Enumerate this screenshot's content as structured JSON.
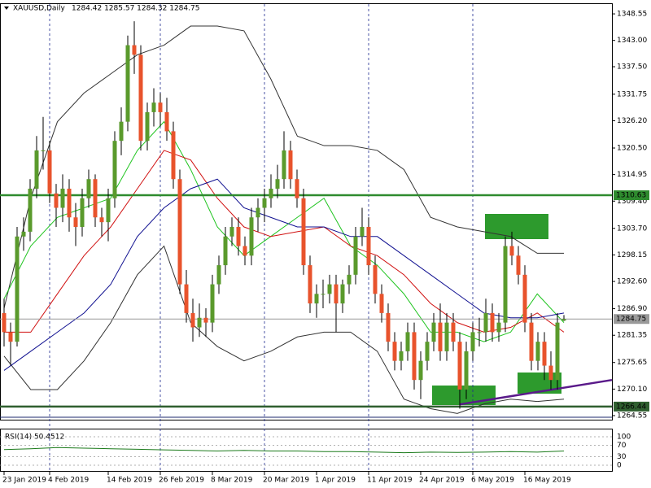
{
  "chart_data": {
    "type": "candlestick",
    "title": "XAUUSD,Daily",
    "ohlc_text": "1284.42 1285.57 1284.32 1284.75",
    "ylim": [
      1263.7,
      1350.6
    ],
    "yticks": [
      1348.55,
      {
        "value": 1343.0,
        "label": "1343.00"
      },
      {
        "value": 1337.5,
        "label": "1337.50"
      },
      1331.75,
      {
        "value": 1326.2,
        "label": "1326.20"
      },
      {
        "value": 1320.5,
        "label": "1320.50"
      },
      1314.95,
      {
        "value": 1309.4,
        "label": "1309.40"
      },
      {
        "value": 1303.7,
        "label": "1303.70"
      },
      1298.15,
      {
        "value": 1292.6,
        "label": "1292.60"
      },
      {
        "value": 1286.9,
        "label": "1286.90"
      },
      1281.35,
      1275.65,
      {
        "value": 1270.1,
        "label": "1270.10"
      },
      1264.55
    ],
    "xticks": [
      {
        "value": 0,
        "label": "23 Jan 2019"
      },
      {
        "value": 7,
        "label": "4 Feb 2019"
      },
      {
        "value": 16,
        "label": "14 Feb 2019"
      },
      {
        "value": 24,
        "label": "26 Feb 2019"
      },
      {
        "value": 32,
        "label": "8 Mar 2019"
      },
      {
        "value": 40,
        "label": "20 Mar 2019"
      },
      {
        "value": 48,
        "label": "1 Apr 2019"
      },
      {
        "value": 56,
        "label": "11 Apr 2019"
      },
      {
        "value": 64,
        "label": "24 Apr 2019"
      },
      {
        "value": 72,
        "label": "6 May 2019"
      },
      {
        "value": 80,
        "label": "16 May 2019"
      }
    ],
    "up_color": "#5a9a2c",
    "down_color": "#e8532c",
    "candles": [
      [
        1286,
        1289,
        1279,
        1282
      ],
      [
        1282,
        1284,
        1275,
        1280
      ],
      [
        1280,
        1304,
        1279,
        1302
      ],
      [
        1302,
        1306,
        1299,
        1303
      ],
      [
        1303,
        1314,
        1301,
        1312
      ],
      [
        1312,
        1323,
        1310,
        1320
      ],
      [
        1320,
        1327,
        1316,
        1320
      ],
      [
        1320,
        1322,
        1309,
        1311
      ],
      [
        1311,
        1313,
        1304,
        1308
      ],
      [
        1308,
        1315,
        1305,
        1312
      ],
      [
        1312,
        1314,
        1303,
        1306
      ],
      [
        1306,
        1309,
        1300,
        1304
      ],
      [
        1304,
        1312,
        1302,
        1310
      ],
      [
        1310,
        1316,
        1308,
        1314
      ],
      [
        1314,
        1315,
        1304,
        1306
      ],
      [
        1306,
        1308,
        1302,
        1305
      ],
      [
        1305,
        1312,
        1301,
        1310
      ],
      [
        1310,
        1324,
        1308,
        1322
      ],
      [
        1322,
        1329,
        1319,
        1326
      ],
      [
        1326,
        1344,
        1324,
        1342
      ],
      [
        1342,
        1347,
        1336,
        1340
      ],
      [
        1340,
        1342,
        1320,
        1322
      ],
      [
        1322,
        1330,
        1320,
        1328
      ],
      [
        1328,
        1333,
        1325,
        1330
      ],
      [
        1330,
        1332,
        1325,
        1328
      ],
      [
        1328,
        1331,
        1322,
        1324
      ],
      [
        1324,
        1326,
        1312,
        1314
      ],
      [
        1314,
        1316,
        1290,
        1292
      ],
      [
        1292,
        1295,
        1284,
        1286
      ],
      [
        1286,
        1289,
        1280,
        1283
      ],
      [
        1283,
        1288,
        1281,
        1285
      ],
      [
        1285,
        1287,
        1281,
        1284
      ],
      [
        1284,
        1294,
        1282,
        1292
      ],
      [
        1292,
        1298,
        1290,
        1296
      ],
      [
        1296,
        1304,
        1294,
        1302
      ],
      [
        1302,
        1306,
        1300,
        1304
      ],
      [
        1304,
        1306,
        1298,
        1300
      ],
      [
        1300,
        1302,
        1296,
        1298
      ],
      [
        1298,
        1308,
        1296,
        1306
      ],
      [
        1306,
        1310,
        1303,
        1308
      ],
      [
        1308,
        1312,
        1305,
        1310
      ],
      [
        1310,
        1315,
        1308,
        1312
      ],
      [
        1312,
        1317,
        1310,
        1314
      ],
      [
        1314,
        1324,
        1312,
        1320
      ],
      [
        1320,
        1322,
        1312,
        1314
      ],
      [
        1314,
        1316,
        1308,
        1310
      ],
      [
        1310,
        1312,
        1294,
        1296
      ],
      [
        1296,
        1298,
        1286,
        1288
      ],
      [
        1288,
        1292,
        1285,
        1290
      ],
      [
        1290,
        1293,
        1287,
        1290
      ],
      [
        1290,
        1294,
        1288,
        1292
      ],
      [
        1292,
        1294,
        1282,
        1288
      ],
      [
        1288,
        1293,
        1286,
        1292
      ],
      [
        1292,
        1296,
        1290,
        1294
      ],
      [
        1294,
        1304,
        1292,
        1302
      ],
      [
        1302,
        1308,
        1300,
        1304
      ],
      [
        1304,
        1306,
        1294,
        1296
      ],
      [
        1296,
        1298,
        1288,
        1290
      ],
      [
        1290,
        1292,
        1284,
        1286
      ],
      [
        1286,
        1288,
        1278,
        1280
      ],
      [
        1280,
        1282,
        1274,
        1276
      ],
      [
        1276,
        1280,
        1274,
        1278
      ],
      [
        1278,
        1284,
        1276,
        1282
      ],
      [
        1282,
        1284,
        1270,
        1272
      ],
      [
        1272,
        1278,
        1268,
        1276
      ],
      [
        1276,
        1282,
        1274,
        1280
      ],
      [
        1280,
        1286,
        1278,
        1284
      ],
      [
        1284,
        1288,
        1276,
        1278
      ],
      [
        1278,
        1286,
        1276,
        1284
      ],
      [
        1284,
        1286,
        1278,
        1280
      ],
      [
        1280,
        1282,
        1266,
        1270
      ],
      [
        1270,
        1280,
        1268,
        1278
      ],
      [
        1278,
        1284,
        1276,
        1282
      ],
      [
        1282,
        1285,
        1279,
        1282
      ],
      [
        1282,
        1289,
        1280,
        1286
      ],
      [
        1286,
        1288,
        1280,
        1282
      ],
      [
        1282,
        1286,
        1280,
        1284
      ],
      [
        1284,
        1302,
        1282,
        1300
      ],
      [
        1300,
        1303,
        1296,
        1298
      ],
      [
        1298,
        1300,
        1292,
        1294
      ],
      [
        1294,
        1296,
        1282,
        1284
      ],
      [
        1284,
        1286,
        1274,
        1276
      ],
      [
        1276,
        1282,
        1274,
        1280
      ],
      [
        1280,
        1282,
        1272,
        1275
      ],
      [
        1275,
        1278,
        1270,
        1272
      ],
      [
        1272,
        1286,
        1270,
        1284
      ],
      [
        1284.42,
        1285.57,
        1284.32,
        1284.75
      ]
    ],
    "series": [
      {
        "color": "#333333",
        "values": [
          1287,
          1310,
          1326,
          1332,
          1336,
          1340,
          1342,
          1346,
          1346,
          1345,
          1335,
          1323,
          1321,
          1321,
          1320,
          1316,
          1306,
          1304,
          1303,
          1302,
          1298.5,
          1298.5
        ]
      },
      {
        "color": "#333333",
        "values": [
          1277,
          1270,
          1270,
          1276,
          1284,
          1294,
          1300,
          1284,
          1279,
          1276,
          1278,
          1281,
          1282,
          1282,
          1278,
          1268,
          1266,
          1265,
          1267,
          1268,
          1267.5,
          1268
        ]
      },
      {
        "color": "#1fc41f",
        "values": [
          1289,
          1300,
          1306,
          1308,
          1310,
          1320,
          1326,
          1316,
          1304,
          1298,
          1302,
          1306,
          1310,
          1300,
          1296,
          1290,
          1282,
          1282,
          1280,
          1282,
          1290,
          1284
        ]
      },
      {
        "color": "#d01010",
        "values": [
          1282,
          1282,
          1290,
          1298,
          1304,
          1312,
          1320,
          1318,
          1310,
          1304,
          1302,
          1303,
          1304,
          1300,
          1298,
          1294,
          1288,
          1284,
          1282,
          1283,
          1286,
          1282
        ]
      },
      {
        "color": "#101090",
        "values": [
          1274,
          1278,
          1282,
          1286,
          1292,
          1302,
          1308,
          1312,
          1314,
          1308,
          1306,
          1304,
          1304,
          1302,
          1302,
          1298,
          1294,
          1290,
          1286,
          1285,
          1285,
          1286
        ]
      }
    ],
    "levels": [
      {
        "value": 1310.63,
        "color": "#2e8b2e"
      },
      {
        "value": 1284.75,
        "color": "#9a9a9a"
      },
      {
        "value": 1266.44,
        "color": "#2f5f2f"
      }
    ],
    "trendline": {
      "values": [
        1266.9,
        1272.0
      ],
      "color": "#5a1a8a"
    },
    "rsi": {
      "label": "RSI(14) 50.4512",
      "color": "#1a7a1a",
      "ylim": [
        0,
        100
      ],
      "yticks": [
        100,
        70,
        30,
        0
      ],
      "values": [
        55,
        58,
        62,
        60,
        58,
        56,
        54,
        52,
        50,
        52,
        50,
        50,
        48,
        48,
        46,
        44,
        46,
        45,
        46,
        48,
        46,
        50
      ]
    }
  }
}
